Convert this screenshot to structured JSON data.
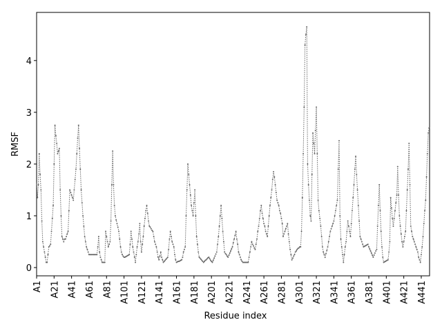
{
  "chart_data": {
    "type": "line",
    "xlabel": "Residue index",
    "ylabel": "RMSF",
    "x": [
      1,
      2,
      3,
      4,
      5,
      6,
      7,
      8,
      9,
      10,
      11,
      12,
      13,
      14,
      15,
      16,
      17,
      18,
      19,
      20,
      21,
      22,
      23,
      24,
      25,
      26,
      27,
      28,
      29,
      30,
      31,
      32,
      33,
      34,
      35,
      36,
      37,
      38,
      39,
      40,
      41,
      42,
      43,
      44,
      45,
      46,
      47,
      48,
      49,
      50,
      51,
      52,
      53,
      54,
      55,
      56,
      57,
      58,
      59,
      60,
      61,
      62,
      63,
      64,
      65,
      66,
      67,
      68,
      69,
      70,
      71,
      72,
      73,
      74,
      75,
      76,
      77,
      78,
      79,
      80,
      81,
      82,
      83,
      84,
      85,
      86,
      87,
      88,
      89,
      90,
      91,
      92,
      93,
      94,
      95,
      96,
      97,
      98,
      99,
      100,
      101,
      102,
      103,
      104,
      105,
      106,
      107,
      108,
      109,
      110,
      111,
      112,
      113,
      114,
      115,
      116,
      117,
      118,
      119,
      120,
      121,
      122,
      123,
      124,
      125,
      126,
      127,
      128,
      129,
      130,
      131,
      132,
      133,
      134,
      135,
      136,
      137,
      138,
      139,
      140,
      141,
      142,
      143,
      144,
      145,
      146,
      147,
      148,
      149,
      150,
      151,
      152,
      153,
      154,
      155,
      156,
      157,
      158,
      159,
      160,
      161,
      162,
      163,
      164,
      165,
      166,
      167,
      168,
      169,
      170,
      171,
      172,
      173,
      174,
      175,
      176,
      177,
      178,
      179,
      180,
      181,
      182,
      183,
      184,
      185,
      186,
      187,
      188,
      189,
      190,
      191,
      192,
      193,
      194,
      195,
      196,
      197,
      198,
      199,
      200,
      201,
      202,
      203,
      204,
      205,
      206,
      207,
      208,
      209,
      210,
      211,
      212,
      213,
      214,
      215,
      216,
      217,
      218,
      219,
      220,
      221,
      222,
      223,
      224,
      225,
      226,
      227,
      228,
      229,
      230,
      231,
      232,
      233,
      234,
      235,
      236,
      237,
      238,
      239,
      240,
      241,
      242,
      243,
      244,
      245,
      246,
      247,
      248,
      249,
      250,
      251,
      252,
      253,
      254,
      255,
      256,
      257,
      258,
      259,
      260,
      261,
      262,
      263,
      264,
      265,
      266,
      267,
      268,
      269,
      270,
      271,
      272,
      273,
      274,
      275,
      276,
      277,
      278,
      279,
      280,
      281,
      282,
      283,
      284,
      285,
      286,
      287,
      288,
      289,
      290,
      291,
      292,
      293,
      294,
      295,
      296,
      297,
      298,
      299,
      300,
      301,
      302,
      303,
      304,
      305,
      306,
      307,
      308,
      309,
      310,
      311,
      312,
      313,
      314,
      315,
      316,
      317,
      318,
      319,
      320,
      321,
      322,
      323,
      324,
      325,
      326,
      327,
      328,
      329,
      330,
      331,
      332,
      333,
      334,
      335,
      336,
      337,
      338,
      339,
      340,
      341,
      342,
      343,
      344,
      345,
      346,
      347,
      348,
      349,
      350,
      351,
      352,
      353,
      354,
      355,
      356,
      357,
      358,
      359,
      360,
      361,
      362,
      363,
      364,
      365,
      366,
      367,
      368,
      369,
      370,
      371,
      372,
      373,
      374,
      375,
      376,
      377,
      378,
      379,
      380,
      381,
      382,
      383,
      384,
      385,
      386,
      387,
      388,
      389,
      390,
      391,
      392,
      393,
      394,
      395,
      396,
      397,
      398,
      399,
      400,
      401,
      402,
      403,
      404,
      405,
      406,
      407,
      408,
      409,
      410,
      411,
      412,
      413,
      414,
      415,
      416,
      417,
      418,
      419,
      420,
      421,
      422,
      423,
      424,
      425,
      426,
      427,
      428,
      429,
      430,
      431,
      432,
      433,
      434,
      435,
      436,
      437,
      438,
      439,
      440,
      441,
      442,
      443,
      444,
      445,
      446,
      447,
      448,
      449,
      450
    ],
    "series": [
      {
        "color": "#666666",
        "values": [
          1.65,
          1.35,
          1.6,
          2.2,
          1.8,
          1.5,
          0.9,
          0.5,
          0.4,
          0.3,
          0.2,
          0.1,
          0.1,
          0.25,
          0.4,
          0.42,
          0.45,
          0.7,
          0.95,
          1.2,
          2.0,
          2.75,
          2.55,
          2.4,
          2.2,
          2.25,
          2.3,
          1.5,
          1.0,
          0.6,
          0.55,
          0.5,
          0.55,
          0.55,
          0.6,
          0.65,
          0.7,
          1.1,
          1.5,
          1.45,
          1.4,
          1.35,
          1.3,
          1.5,
          1.7,
          1.9,
          2.2,
          2.5,
          2.75,
          2.3,
          1.9,
          1.5,
          1.25,
          1.0,
          0.8,
          0.6,
          0.5,
          0.4,
          0.35,
          0.3,
          0.25,
          0.25,
          0.25,
          0.25,
          0.25,
          0.25,
          0.25,
          0.25,
          0.25,
          0.25,
          0.4,
          0.6,
          0.3,
          0.2,
          0.15,
          0.1,
          0.1,
          0.1,
          0.1,
          0.7,
          0.6,
          0.5,
          0.4,
          0.45,
          0.5,
          0.9,
          1.6,
          2.25,
          1.6,
          1.2,
          1.0,
          0.92,
          0.85,
          0.78,
          0.7,
          0.55,
          0.4,
          0.3,
          0.25,
          0.22,
          0.2,
          0.2,
          0.21,
          0.22,
          0.23,
          0.24,
          0.25,
          0.45,
          0.7,
          0.55,
          0.4,
          0.3,
          0.2,
          0.1,
          0.25,
          0.4,
          0.5,
          0.65,
          0.85,
          0.5,
          0.3,
          0.45,
          0.6,
          0.8,
          0.95,
          1.1,
          1.2,
          1.05,
          0.9,
          0.8,
          0.78,
          0.75,
          0.72,
          0.7,
          0.6,
          0.5,
          0.45,
          0.4,
          0.3,
          0.2,
          0.15,
          0.22,
          0.3,
          0.2,
          0.15,
          0.1,
          0.12,
          0.14,
          0.16,
          0.18,
          0.2,
          0.35,
          0.55,
          0.7,
          0.6,
          0.5,
          0.45,
          0.4,
          0.25,
          0.15,
          0.1,
          0.11,
          0.12,
          0.12,
          0.13,
          0.14,
          0.15,
          0.2,
          0.3,
          0.35,
          0.4,
          1.0,
          1.5,
          2.0,
          1.8,
          1.6,
          1.4,
          1.2,
          1.1,
          1.0,
          1.25,
          1.5,
          1.0,
          0.6,
          0.45,
          0.3,
          0.2,
          0.18,
          0.16,
          0.14,
          0.12,
          0.1,
          0.12,
          0.14,
          0.15,
          0.17,
          0.19,
          0.2,
          0.17,
          0.14,
          0.12,
          0.1,
          0.14,
          0.18,
          0.22,
          0.26,
          0.3,
          0.45,
          0.6,
          0.8,
          1.0,
          1.2,
          0.95,
          0.7,
          0.5,
          0.3,
          0.27,
          0.25,
          0.22,
          0.2,
          0.24,
          0.28,
          0.32,
          0.36,
          0.4,
          0.48,
          0.55,
          0.62,
          0.7,
          0.55,
          0.45,
          0.3,
          0.25,
          0.2,
          0.15,
          0.12,
          0.1,
          0.1,
          0.1,
          0.1,
          0.1,
          0.1,
          0.1,
          0.2,
          0.3,
          0.4,
          0.5,
          0.45,
          0.42,
          0.38,
          0.35,
          0.45,
          0.55,
          0.7,
          0.8,
          0.95,
          1.1,
          1.2,
          1.05,
          0.95,
          0.85,
          0.8,
          0.7,
          0.65,
          0.6,
          0.8,
          1.0,
          1.2,
          1.35,
          1.5,
          1.7,
          1.85,
          1.75,
          1.6,
          1.45,
          1.3,
          1.25,
          1.2,
          1.1,
          1.05,
          0.95,
          0.85,
          0.6,
          0.65,
          0.7,
          0.75,
          0.8,
          0.85,
          0.65,
          0.5,
          0.35,
          0.25,
          0.15,
          0.18,
          0.22,
          0.25,
          0.3,
          0.32,
          0.35,
          0.37,
          0.38,
          0.4,
          0.4,
          0.7,
          1.35,
          2.2,
          3.1,
          4.3,
          4.5,
          4.65,
          2.0,
          1.6,
          1.3,
          1.0,
          0.9,
          1.8,
          2.6,
          2.4,
          2.2,
          2.65,
          3.1,
          2.2,
          1.3,
          1.1,
          0.95,
          0.8,
          0.6,
          0.4,
          0.3,
          0.25,
          0.2,
          0.27,
          0.33,
          0.4,
          0.5,
          0.6,
          0.7,
          0.75,
          0.8,
          0.85,
          0.9,
          1.0,
          1.1,
          1.2,
          1.3,
          1.9,
          2.45,
          1.0,
          0.55,
          0.4,
          0.25,
          0.1,
          0.25,
          0.4,
          0.5,
          0.7,
          0.9,
          0.8,
          0.7,
          0.6,
          0.85,
          1.1,
          1.35,
          1.6,
          1.9,
          2.15,
          1.8,
          1.5,
          1.2,
          0.9,
          0.6,
          0.55,
          0.5,
          0.45,
          0.4,
          0.41,
          0.42,
          0.43,
          0.44,
          0.45,
          0.4,
          0.36,
          0.32,
          0.28,
          0.24,
          0.2,
          0.24,
          0.28,
          0.32,
          0.35,
          0.8,
          1.2,
          1.6,
          1.1,
          0.7,
          0.4,
          0.2,
          0.1,
          0.11,
          0.12,
          0.13,
          0.14,
          0.15,
          0.3,
          0.5,
          1.35,
          1.15,
          0.95,
          0.8,
          0.95,
          1.1,
          1.25,
          1.4,
          1.95,
          1.4,
          1.0,
          0.8,
          0.65,
          0.5,
          0.4,
          0.5,
          0.6,
          0.7,
          1.1,
          1.5,
          1.9,
          2.4,
          1.6,
          0.8,
          0.7,
          0.6,
          0.55,
          0.5,
          0.45,
          0.4,
          0.35,
          0.3,
          0.2,
          0.15,
          0.1,
          0.25,
          0.4,
          0.6,
          0.85,
          1.1,
          1.3,
          1.75,
          2.2,
          2.6,
          2.7
        ]
      }
    ],
    "xlim": [
      1,
      450.5
    ],
    "xticks": [
      {
        "value": 1,
        "label": "A1"
      },
      {
        "value": 21,
        "label": "A21"
      },
      {
        "value": 41,
        "label": "A41"
      },
      {
        "value": 61,
        "label": "A61"
      },
      {
        "value": 81,
        "label": "A81"
      },
      {
        "value": 101,
        "label": "A101"
      },
      {
        "value": 121,
        "label": "A121"
      },
      {
        "value": 141,
        "label": "A141"
      },
      {
        "value": 161,
        "label": "A161"
      },
      {
        "value": 181,
        "label": "A181"
      },
      {
        "value": 201,
        "label": "A201"
      },
      {
        "value": 221,
        "label": "A221"
      },
      {
        "value": 241,
        "label": "A241"
      },
      {
        "value": 261,
        "label": "A261"
      },
      {
        "value": 281,
        "label": "A281"
      },
      {
        "value": 301,
        "label": "A301"
      },
      {
        "value": 321,
        "label": "A321"
      },
      {
        "value": 341,
        "label": "A341"
      },
      {
        "value": 361,
        "label": "A361"
      },
      {
        "value": 381,
        "label": "A381"
      },
      {
        "value": 401,
        "label": "A401"
      },
      {
        "value": 421,
        "label": "A421"
      },
      {
        "value": 441,
        "label": "A441"
      }
    ],
    "ylim": [
      -0.16,
      4.93
    ],
    "yticks": [
      0,
      1,
      2,
      3,
      4
    ]
  }
}
